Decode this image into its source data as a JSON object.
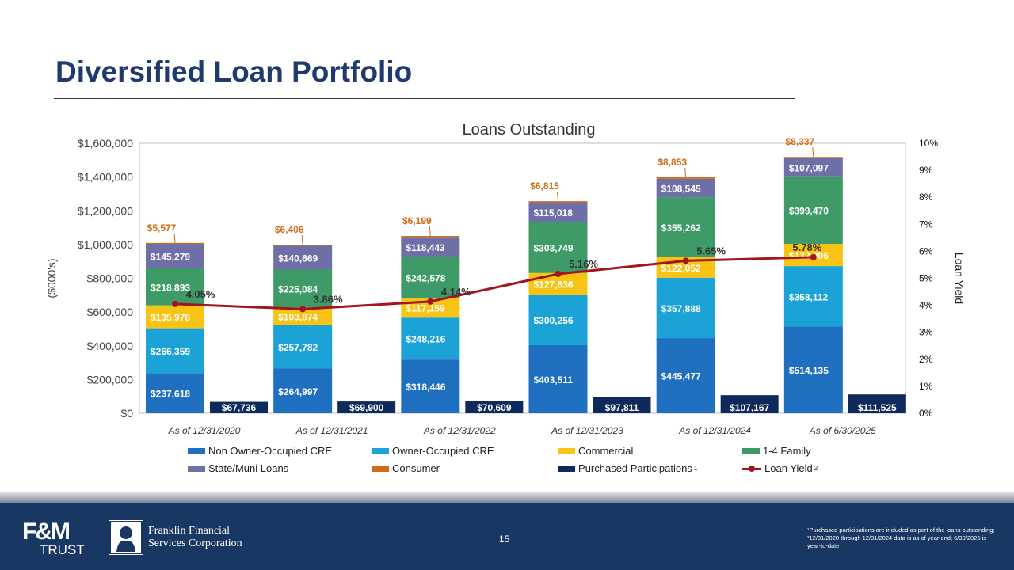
{
  "slide": {
    "title": "Diversified Loan Portfolio",
    "page_number": "15",
    "footnote": "¹Purchased participations are included as part of the loans outstanding; ²12/31/2020 through 12/31/2024 data is as of year end; 6/30/2025 is year-to-date"
  },
  "logos": {
    "fm_top": "F&M",
    "fm_bottom": "TRUST",
    "ffsc_line1": "Franklin Financial",
    "ffsc_line2": "Services Corporation"
  },
  "chart_data": {
    "type": "bar",
    "stacked": true,
    "title": "Loans Outstanding",
    "ylabel": "($000's)",
    "y2label": "Loan Yield",
    "ylim": [
      0,
      1600000
    ],
    "y2lim": [
      0,
      10
    ],
    "yticks": [
      "$0",
      "$200,000",
      "$400,000",
      "$600,000",
      "$800,000",
      "$1,000,000",
      "$1,200,000",
      "$1,400,000",
      "$1,600,000"
    ],
    "y2ticks": [
      "0%",
      "1%",
      "2%",
      "3%",
      "4%",
      "5%",
      "6%",
      "7%",
      "8%",
      "9%",
      "10%"
    ],
    "grid": false,
    "legend_position": "bottom",
    "categories": [
      "As of 12/31/2020",
      "As of 12/31/2021",
      "As of 12/31/2022",
      "As of 12/31/2023",
      "As of 12/31/2024",
      "As of 6/30/2025"
    ],
    "series": [
      {
        "name": "Non Owner-Occupied CRE",
        "color": "#1f6fc1",
        "values": [
          237618,
          264997,
          318446,
          403511,
          445477,
          514135
        ],
        "labels": [
          "$237,618",
          "$264,997",
          "$318,446",
          "$403,511",
          "$445,477",
          "$514,135"
        ]
      },
      {
        "name": "Owner-Occupied CRE",
        "color": "#1ba3d8",
        "values": [
          266359,
          257782,
          248216,
          300256,
          357888,
          358112
        ],
        "labels": [
          "$266,359",
          "$257,782",
          "$248,216",
          "$300,256",
          "$357,888",
          "$358,112"
        ]
      },
      {
        "name": "Commercial",
        "color": "#f8c313",
        "values": [
          135978,
          103874,
          117159,
          127636,
          122052,
          132006
        ],
        "labels": [
          "$135,978",
          "$103,874",
          "$117,159",
          "$127,636",
          "$122,052",
          "$132,006"
        ]
      },
      {
        "name": "1-4 Family",
        "color": "#3e9b68",
        "values": [
          218893,
          225084,
          242578,
          303749,
          355262,
          399470
        ],
        "labels": [
          "$218,893",
          "$225,084",
          "$242,578",
          "$303,749",
          "$355,262",
          "$399,470"
        ]
      },
      {
        "name": "State/Muni Loans",
        "color": "#6f6fa8",
        "values": [
          145279,
          140669,
          118443,
          115018,
          108545,
          107097
        ],
        "labels": [
          "$145,279",
          "$140,669",
          "$118,443",
          "$115,018",
          "$108,545",
          "$107,097"
        ]
      },
      {
        "name": "Consumer",
        "color": "#d36a14",
        "values": [
          5577,
          6406,
          6199,
          6815,
          8853,
          8337
        ],
        "labels": [
          "$5,577",
          "$6,406",
          "$6,199",
          "$6,815",
          "$8,853",
          "$8,337"
        ]
      },
      {
        "name": "Purchased Participations",
        "name_sup": "1",
        "color": "#0e2a5c",
        "values": [
          67736,
          69900,
          70609,
          97811,
          107167,
          111525
        ],
        "labels": [
          "$67,736",
          "$69,900",
          "$70,609",
          "$97,811",
          "$107,167",
          "$111,525"
        ]
      },
      {
        "name": "Loan Yield",
        "name_sup": "2",
        "type": "line",
        "axis": "right",
        "color": "#a3151c",
        "values": [
          4.05,
          3.86,
          4.14,
          5.16,
          5.65,
          5.78
        ],
        "labels": [
          "4.05%",
          "3.86%",
          "4.14%",
          "5.16%",
          "5.65%",
          "5.78%"
        ]
      }
    ]
  }
}
